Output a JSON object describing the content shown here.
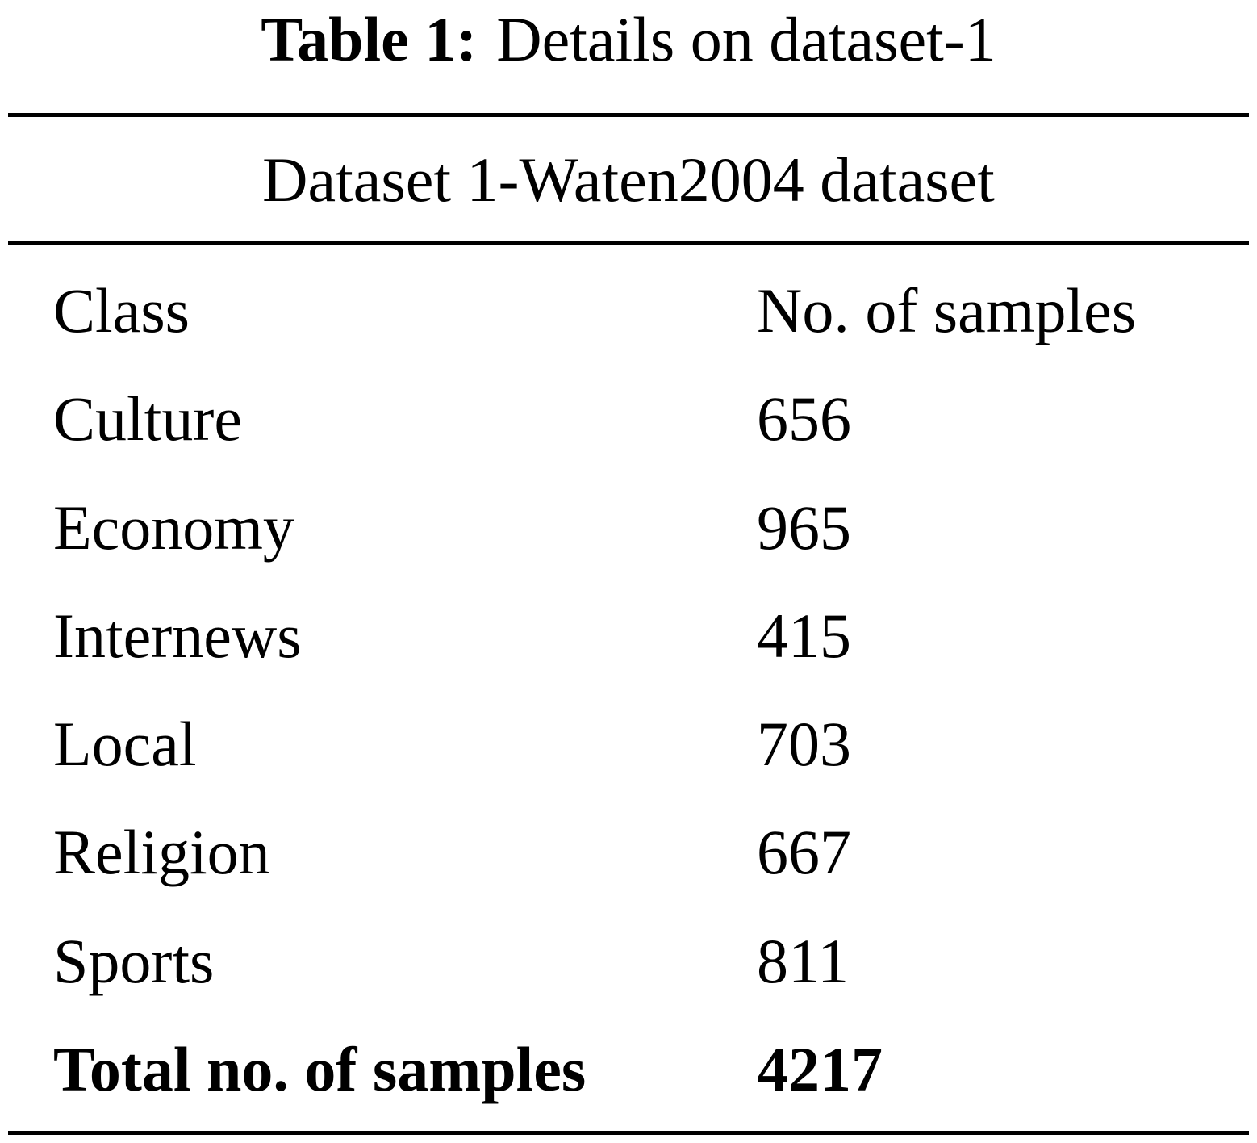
{
  "caption": {
    "label": "Table 1:",
    "text": "Details on dataset-1"
  },
  "table": {
    "group_header": "Dataset 1-Waten2004 dataset",
    "columns": [
      "Class",
      "No. of samples"
    ],
    "rows": [
      {
        "class": "Culture",
        "samples": "656"
      },
      {
        "class": "Economy",
        "samples": "965"
      },
      {
        "class": "Internews",
        "samples": "415"
      },
      {
        "class": "Local",
        "samples": "703"
      },
      {
        "class": "Religion",
        "samples": "667"
      },
      {
        "class": "Sports",
        "samples": "811"
      }
    ],
    "total": {
      "label": "Total no. of samples",
      "value": "4217"
    }
  }
}
